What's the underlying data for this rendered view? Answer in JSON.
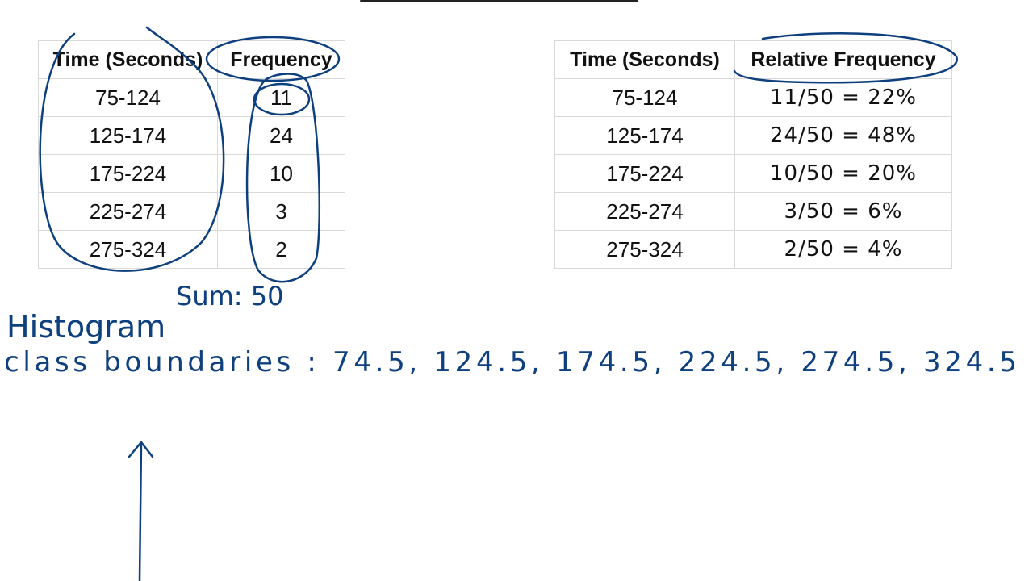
{
  "left_table": {
    "header": [
      "Time (Seconds)",
      "Frequency"
    ],
    "rows": [
      [
        "75-124",
        "11"
      ],
      [
        "125-174",
        "24"
      ],
      [
        "175-224",
        "10"
      ],
      [
        "225-274",
        "3"
      ],
      [
        "275-324",
        "2"
      ]
    ]
  },
  "right_table": {
    "header": [
      "Time (Seconds)",
      "Relative Frequency"
    ],
    "rows": [
      [
        "75-124",
        "11/50 = 22%"
      ],
      [
        "125-174",
        "24/50 = 48%"
      ],
      [
        "175-224",
        "10/50 = 20%"
      ],
      [
        "225-274",
        "3/50 = 6%"
      ],
      [
        "275-324",
        "2/50 = 4%"
      ]
    ]
  },
  "notes": {
    "sum": "Sum: 50",
    "heading": "Histogram",
    "class_boundaries": "class boundaries : 74.5, 124.5, 174.5, 224.5, 274.5, 324.5"
  }
}
